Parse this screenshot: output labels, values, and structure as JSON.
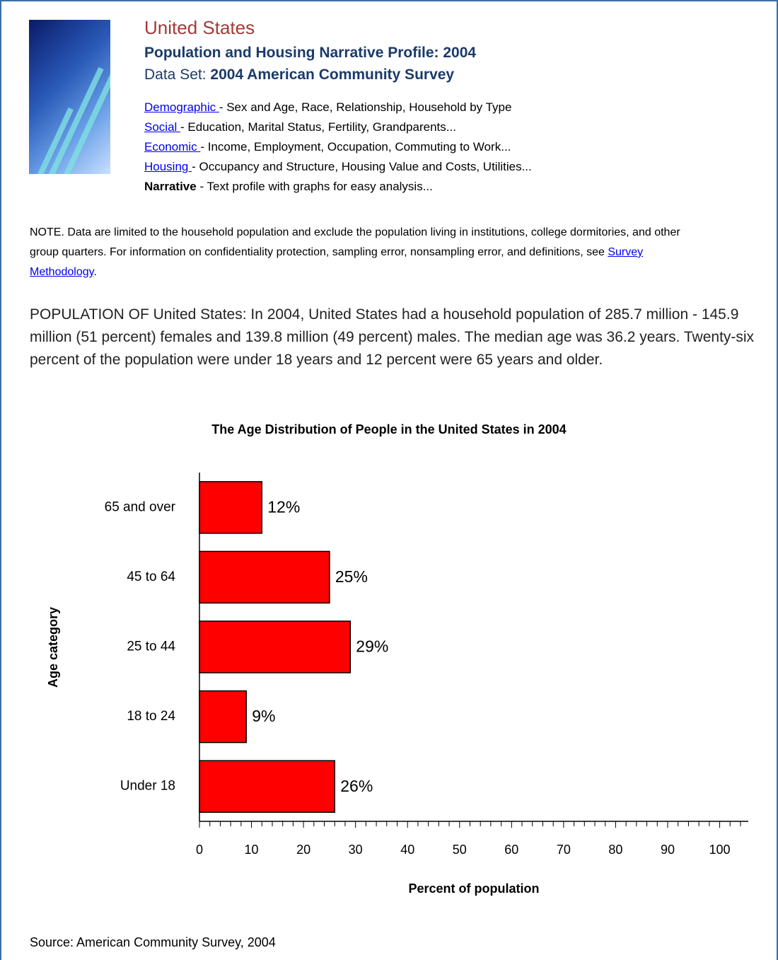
{
  "header": {
    "title": "United States",
    "subtitle": "Population and Housing Narrative Profile: 2004",
    "dataset_label": "Data Set:",
    "dataset": "2004 American Community Survey"
  },
  "links": [
    {
      "link": "Demographic ",
      "text": " - Sex and Age, Race, Relationship, Household by Type"
    },
    {
      "link": "Social ",
      "text": " - Education, Marital Status, Fertility, Grandparents..."
    },
    {
      "link": "Economic ",
      "text": " - Income, Employment, Occupation, Commuting to Work..."
    },
    {
      "link": "Housing ",
      "text": " - Occupancy and Structure, Housing Value and Costs, Utilities..."
    }
  ],
  "narrative": {
    "bold": "Narrative",
    "text": " - Text profile with graphs for easy analysis..."
  },
  "note": {
    "text": "NOTE. Data are limited to the household population and exclude the population living in institutions, college dormitories, and other group quarters. For information on confidentiality protection, sampling error, nonsampling error, and definitions, see ",
    "link": "Survey Methodology",
    "after": "."
  },
  "paragraph": "POPULATION OF United States: In 2004, United States had a household population of 285.7 million - 145.9 million (51 percent) females and 139.8 million (49 percent) males. The median age was 36.2 years. Twenty-six percent of the population were under 18 years and 12 percent were 65 years and older.",
  "chart_data": {
    "type": "bar",
    "orientation": "horizontal",
    "title": "The Age Distribution of People in the United States in 2004",
    "x_label": "Percent of population",
    "y_label": "Age category",
    "categories": [
      "65 and over",
      "45 to 64",
      "25 to 44",
      "18 to 24",
      "Under 18"
    ],
    "values": [
      12,
      25,
      29,
      9,
      26
    ],
    "value_labels": [
      "12%",
      "25%",
      "29%",
      "9%",
      "26%"
    ],
    "color": "#ff0000",
    "xlim": [
      0,
      105.5
    ],
    "xticks": [
      0,
      10,
      20,
      30,
      40,
      50,
      60,
      70,
      80,
      90,
      100
    ],
    "xminorticks": [
      2,
      4,
      6,
      8,
      12,
      14,
      16,
      18,
      22,
      24,
      26,
      28,
      32,
      34,
      36,
      38,
      42,
      44,
      46,
      48,
      52,
      54,
      56,
      58,
      62,
      64,
      66,
      68,
      72,
      74,
      76,
      78,
      82,
      84,
      86,
      88,
      92,
      94,
      96,
      98,
      102,
      104
    ],
    "grid": false
  },
  "source": "Source: American Community Survey, 2004"
}
